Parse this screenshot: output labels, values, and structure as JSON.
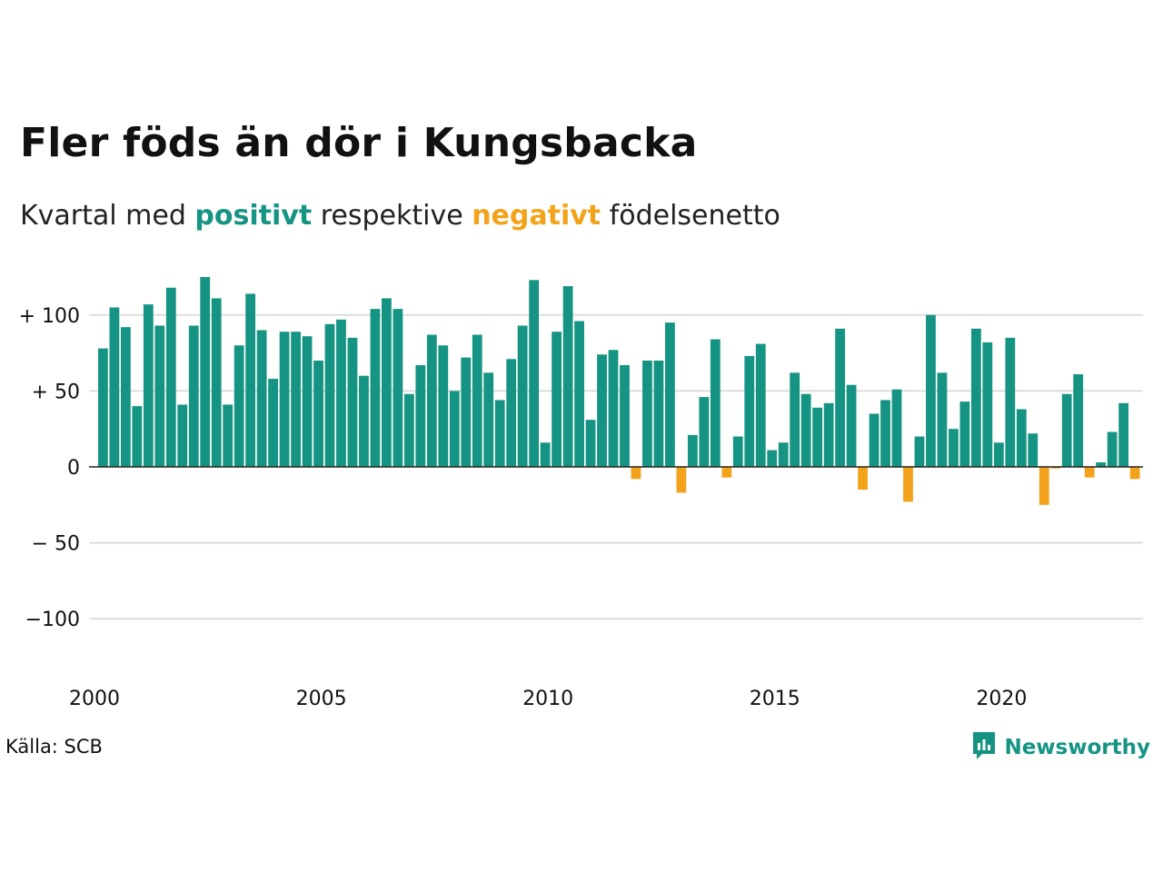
{
  "title": "Fler föds än dör i Kungsbacka",
  "subtitle": {
    "prefix": "Kvartal med ",
    "positive": "positivt",
    "middle": " respektive ",
    "negative": "negativt",
    "suffix": " födelsenetto"
  },
  "source": "Källa: SCB",
  "brand": {
    "name": "Newsworthy",
    "icon": "newsworthy-logo-icon"
  },
  "colors": {
    "positive": "#169483",
    "negative": "#f3a31b",
    "grid": "#dddddd",
    "zero": "#222222"
  },
  "chart_data": {
    "type": "bar",
    "title": "Fler föds än dör i Kungsbacka",
    "subtitle": "Kvartal med positivt respektive negativt födelsenetto",
    "x_start": "2000 Q1",
    "x_tick_labels": [
      "2000",
      "2005",
      "2010",
      "2015",
      "2020"
    ],
    "y_ticks": [
      100,
      50,
      0,
      -50,
      -100
    ],
    "y_tick_labels": [
      "+ 100",
      "+  50",
      "0",
      "− 50",
      "−100"
    ],
    "ylim": [
      -130,
      130
    ],
    "grid": true,
    "values": [
      78,
      105,
      92,
      40,
      107,
      93,
      118,
      41,
      93,
      125,
      111,
      41,
      80,
      114,
      90,
      58,
      89,
      89,
      86,
      70,
      94,
      97,
      85,
      60,
      104,
      111,
      104,
      48,
      67,
      87,
      80,
      50,
      72,
      87,
      62,
      44,
      71,
      93,
      123,
      16,
      89,
      119,
      96,
      31,
      74,
      77,
      67,
      -8,
      70,
      70,
      95,
      -17,
      21,
      46,
      84,
      -7,
      20,
      73,
      81,
      11,
      16,
      62,
      48,
      39,
      42,
      91,
      54,
      -15,
      35,
      44,
      51,
      -23,
      20,
      100,
      62,
      25,
      43,
      91,
      82,
      16,
      85,
      38,
      22,
      -25,
      -1,
      48,
      61,
      -7,
      3,
      23,
      42,
      -8
    ]
  }
}
